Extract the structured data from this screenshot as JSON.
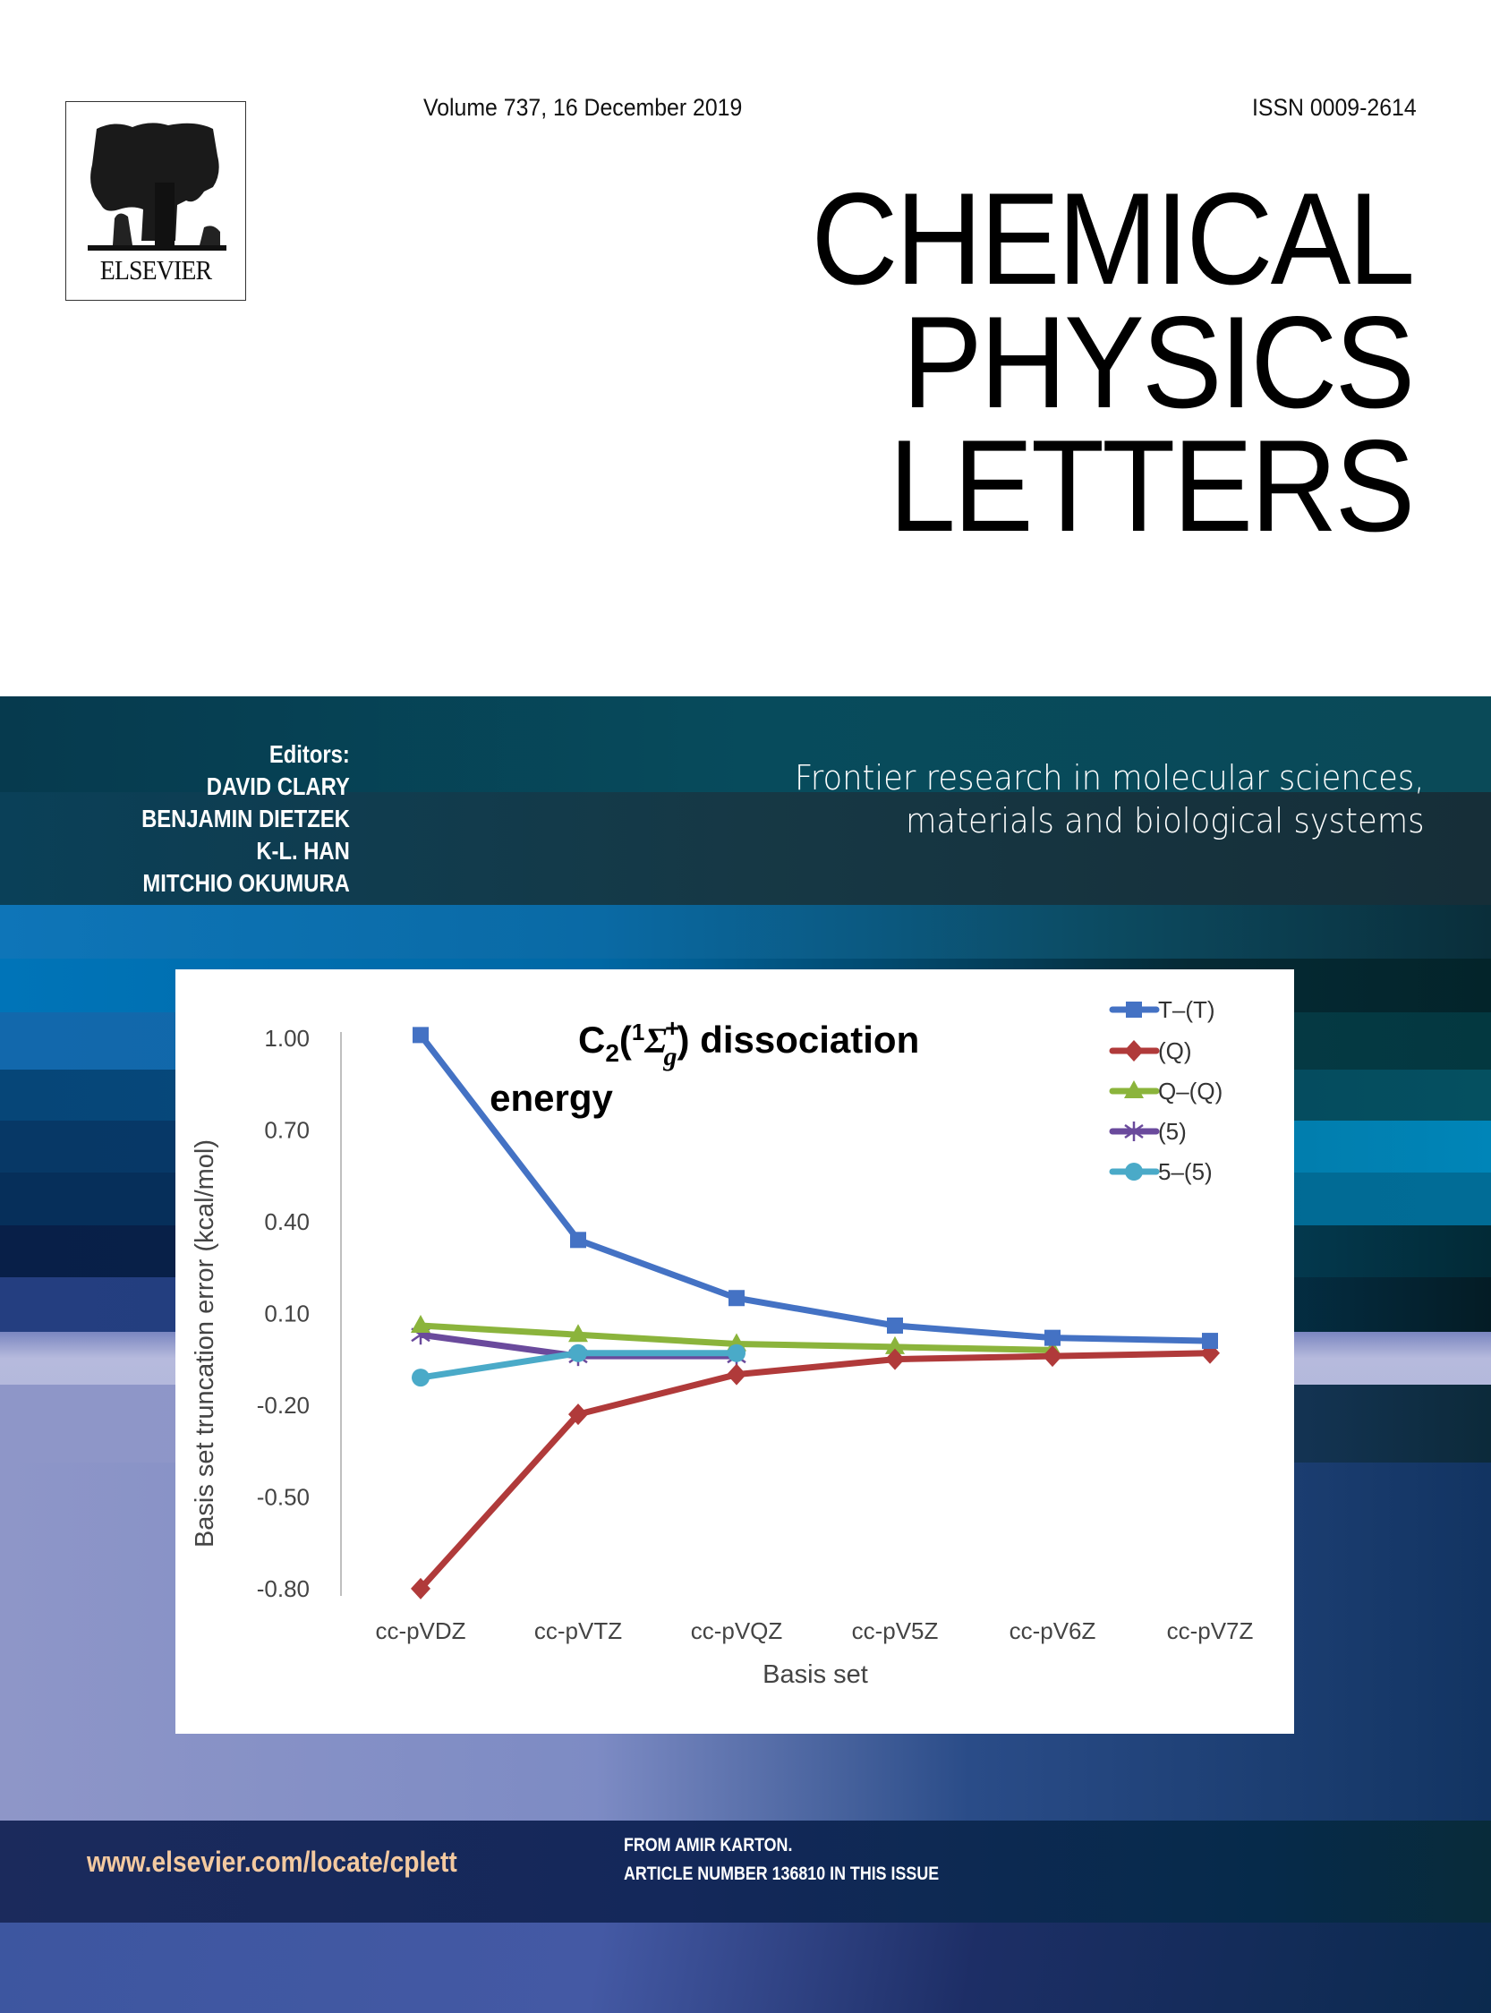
{
  "header": {
    "publisher_logo_text": "ELSEVIER",
    "volume_line": "Volume 737, 16 December 2019",
    "issn": "ISSN 0009-2614",
    "journal_title_lines": [
      "CHEMICAL",
      "PHYSICS",
      "LETTERS"
    ]
  },
  "editors": {
    "heading": "Editors:",
    "names": [
      "DAVID CLARY",
      "BENJAMIN DIETZEK",
      "K-L. HAN",
      "MITCHIO OKUMURA"
    ]
  },
  "tagline": {
    "lines": [
      "Frontier research in molecular sciences,",
      "materials and biological systems"
    ]
  },
  "footer": {
    "url": "www.elsevier.com/locate/cplett",
    "credit_lines": [
      "FROM AMIR KARTON.",
      "ARTICLE NUMBER 136810 IN THIS ISSUE"
    ]
  },
  "colors": {
    "series_TT": "#4472c4",
    "series_Q": "#b03a3a",
    "series_QQ": "#8bb43c",
    "series_5": "#6a4a9c",
    "series_55": "#4aaac8",
    "url_color": "#f3c9a0"
  },
  "chart_data": {
    "type": "line",
    "title": "C2(1Σg+) dissociation energy",
    "title_parts": {
      "main": "C",
      "sub": "2",
      "paren_open": "(",
      "sup_1": "1",
      "sigma": "Σ",
      "sigma_sub": "g",
      "sigma_sup": "+",
      "paren_close": ")",
      "rest_line1": " dissociation",
      "line2": "energy"
    },
    "xlabel": "Basis set",
    "ylabel": "Basis set truncation error (kcal/mol)",
    "categories": [
      "cc-pVDZ",
      "cc-pVTZ",
      "cc-pVQZ",
      "cc-pV5Z",
      "cc-pV6Z",
      "cc-pV7Z"
    ],
    "yticks": [
      "1.00",
      "0.70",
      "0.40",
      "0.10",
      "-0.20",
      "-0.50",
      "-0.80"
    ],
    "ylim": [
      -0.8,
      1.0
    ],
    "grid": false,
    "legend_position": "right",
    "series": [
      {
        "name": "T–(T)",
        "marker": "square",
        "values": [
          1.01,
          0.34,
          0.15,
          0.06,
          0.02,
          0.01
        ]
      },
      {
        "name": "(Q)",
        "marker": "diamond",
        "values": [
          -0.8,
          -0.23,
          -0.1,
          -0.05,
          -0.04,
          -0.03
        ]
      },
      {
        "name": "Q–(Q)",
        "marker": "triangle",
        "values": [
          0.06,
          0.03,
          0.0,
          -0.01,
          -0.02,
          null
        ]
      },
      {
        "name": "(5)",
        "marker": "asterisk",
        "values": [
          0.03,
          -0.04,
          -0.04,
          null,
          null,
          null
        ]
      },
      {
        "name": "5–(5)",
        "marker": "circle",
        "values": [
          -0.11,
          -0.03,
          -0.03,
          null,
          null,
          null
        ]
      }
    ]
  }
}
